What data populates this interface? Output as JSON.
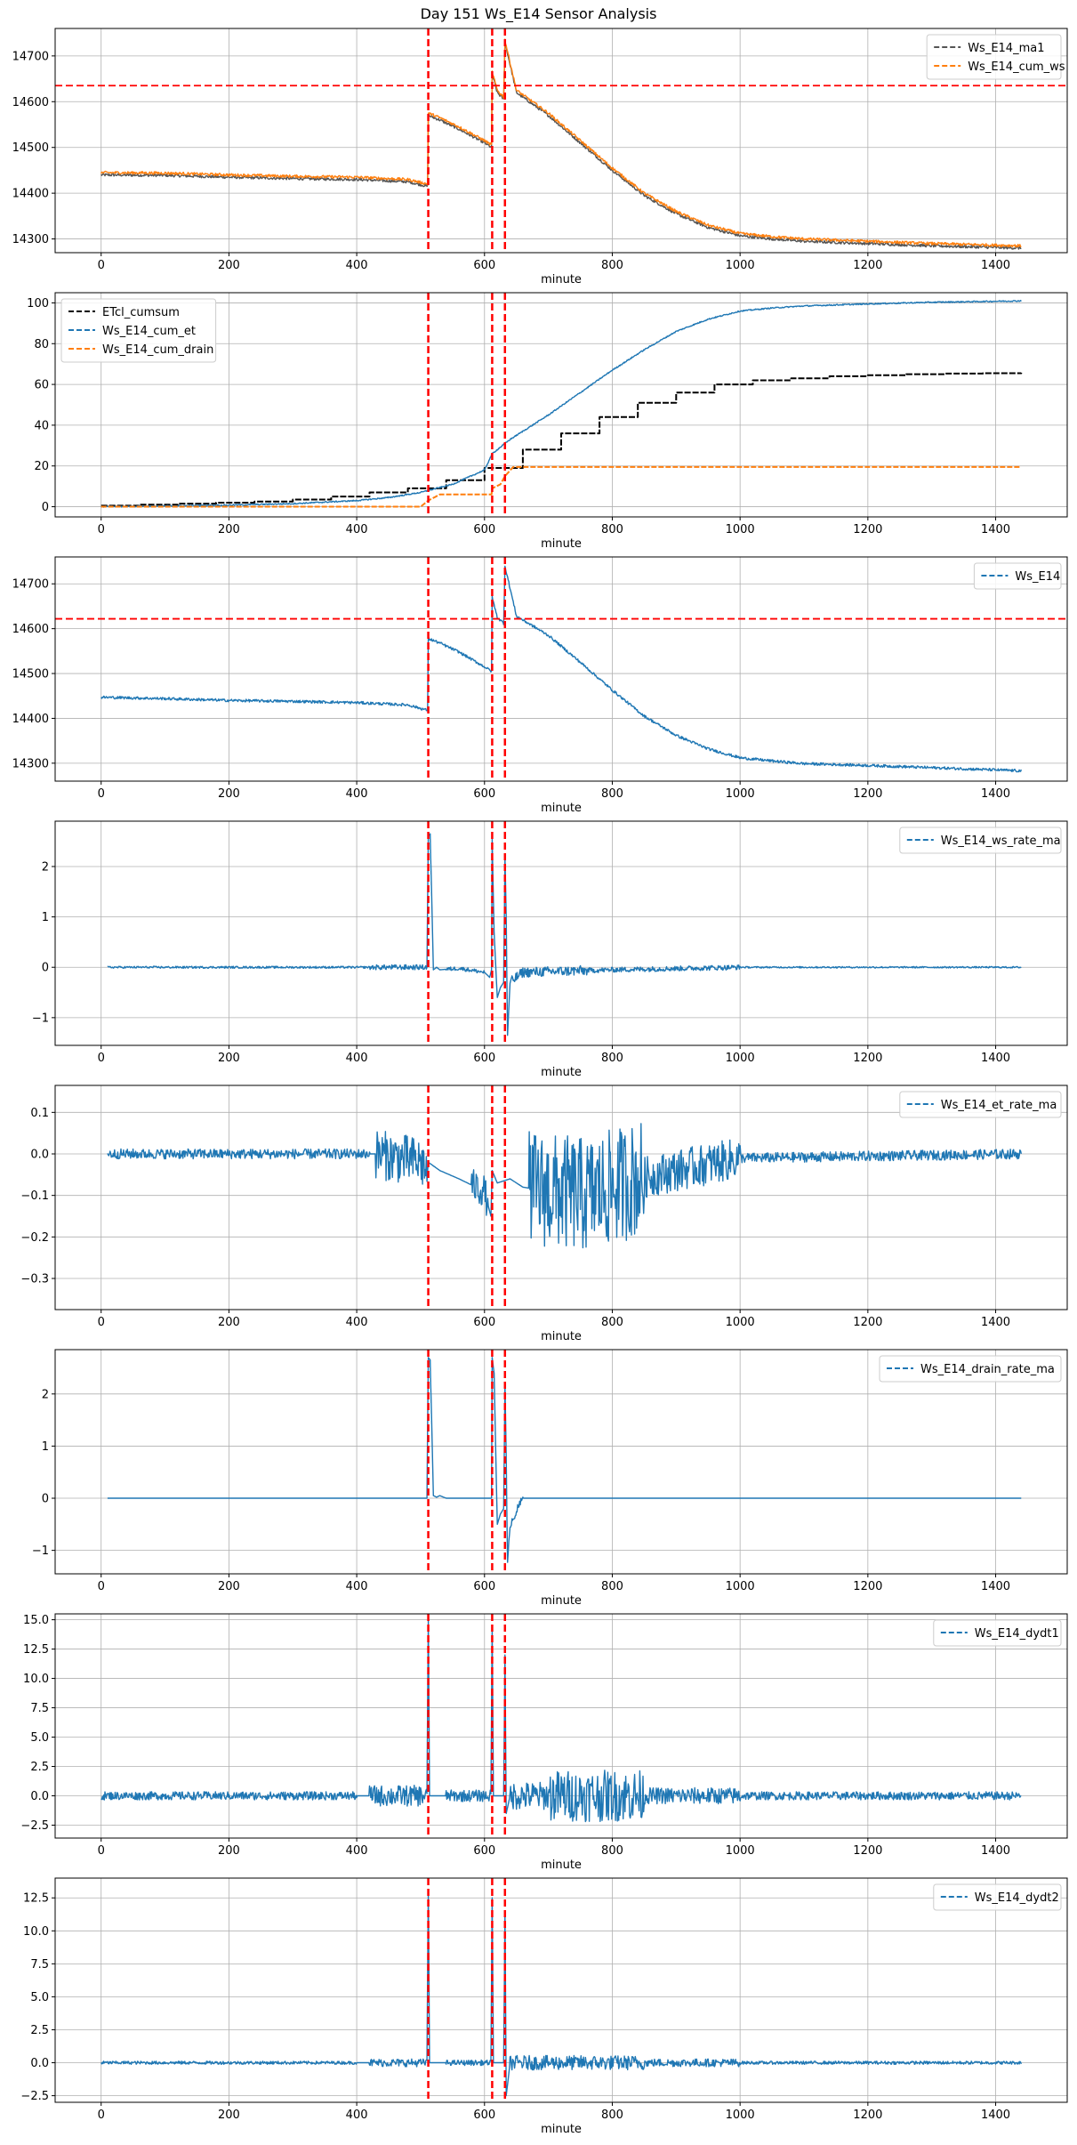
{
  "title": "Day 151 Ws_E14 Sensor Analysis",
  "colors": {
    "blue": "#1f77b4",
    "orange": "#ff7f0e",
    "black": "#000000",
    "gray": "#555555",
    "red": "#ff0000",
    "grid": "#b0b0b0"
  },
  "chart_data": [
    {
      "type": "line",
      "xlabel": "minute",
      "xlim": [
        -72,
        1512
      ],
      "ylim": [
        14270,
        14760
      ],
      "xticks": [
        0,
        200,
        400,
        600,
        800,
        1000,
        1200,
        1400
      ],
      "yticks": [
        14300,
        14400,
        14500,
        14600,
        14700
      ],
      "yticklabels": [
        "14300",
        "14400",
        "14500",
        "14600",
        "14700"
      ],
      "vlines": [
        512,
        612,
        632
      ],
      "hline": 14635,
      "legend_position": "upper right",
      "series": [
        {
          "name": "Ws_E14_ma1",
          "color": "#555555",
          "noise": 3,
          "offset": -5,
          "x": [
            0,
            100,
            200,
            300,
            400,
            480,
            511,
            512,
            530,
            560,
            600,
            611,
            612,
            620,
            630,
            632,
            650,
            700,
            750,
            800,
            850,
            900,
            950,
            1000,
            1050,
            1100,
            1200,
            1300,
            1440
          ],
          "y": [
            14445,
            14444,
            14440,
            14437,
            14435,
            14430,
            14420,
            14575,
            14565,
            14545,
            14515,
            14505,
            14665,
            14625,
            14610,
            14735,
            14625,
            14575,
            14515,
            14455,
            14400,
            14360,
            14330,
            14312,
            14305,
            14300,
            14295,
            14290,
            14285
          ]
        },
        {
          "name": "Ws_E14_cum_ws",
          "color": "#ff7f0e",
          "noise": 3,
          "offset": 0,
          "x": [
            0,
            100,
            200,
            300,
            400,
            480,
            511,
            512,
            530,
            560,
            600,
            611,
            612,
            620,
            630,
            632,
            650,
            700,
            750,
            800,
            850,
            900,
            950,
            1000,
            1050,
            1100,
            1200,
            1300,
            1440
          ],
          "y": [
            14445,
            14444,
            14440,
            14437,
            14435,
            14430,
            14420,
            14575,
            14565,
            14545,
            14515,
            14505,
            14665,
            14625,
            14610,
            14735,
            14625,
            14575,
            14515,
            14455,
            14400,
            14360,
            14330,
            14312,
            14305,
            14300,
            14295,
            14290,
            14285
          ]
        }
      ]
    },
    {
      "type": "line",
      "xlabel": "minute",
      "xlim": [
        -72,
        1512
      ],
      "ylim": [
        -5,
        105
      ],
      "xticks": [
        0,
        200,
        400,
        600,
        800,
        1000,
        1200,
        1400
      ],
      "yticks": [
        0,
        20,
        40,
        60,
        80,
        100
      ],
      "yticklabels": [
        "0",
        "20",
        "40",
        "60",
        "80",
        "100"
      ],
      "vlines": [
        512,
        612,
        632
      ],
      "legend_position": "upper left",
      "series": [
        {
          "name": "ETcl_cumsum",
          "color": "#000000",
          "step": true,
          "x": [
            0,
            60,
            120,
            180,
            240,
            300,
            360,
            420,
            480,
            540,
            600,
            660,
            720,
            780,
            840,
            900,
            960,
            1020,
            1080,
            1140,
            1200,
            1260,
            1320,
            1380,
            1440
          ],
          "y": [
            0.5,
            1,
            1.5,
            2,
            2.5,
            3.5,
            5,
            7,
            9,
            13,
            19,
            28,
            36,
            44,
            51,
            56,
            60,
            62,
            63,
            64,
            64.5,
            65,
            65.3,
            65.5,
            65.7
          ]
        },
        {
          "name": "Ws_E14_cum_et",
          "color": "#1f77b4",
          "noise": 0.3,
          "x": [
            0,
            100,
            200,
            300,
            400,
            450,
            500,
            550,
            600,
            612,
            640,
            700,
            750,
            800,
            850,
            900,
            950,
            1000,
            1050,
            1100,
            1200,
            1300,
            1440
          ],
          "y": [
            0,
            0.3,
            0.8,
            1.5,
            3,
            4.5,
            7,
            11,
            18,
            26,
            33,
            45,
            56,
            67,
            77,
            86,
            92,
            96,
            97.5,
            98.5,
            99.5,
            100.3,
            101
          ]
        },
        {
          "name": "Ws_E14_cum_drain",
          "color": "#ff7f0e",
          "x": [
            0,
            500,
            512,
            530,
            600,
            611,
            612,
            625,
            632,
            645,
            700,
            1000,
            1440
          ],
          "y": [
            0,
            0,
            3,
            6,
            6,
            6,
            9,
            11,
            15,
            19.5,
            19.5,
            19.5,
            19.5
          ]
        }
      ]
    },
    {
      "type": "line",
      "xlabel": "minute",
      "xlim": [
        -72,
        1512
      ],
      "ylim": [
        14260,
        14760
      ],
      "xticks": [
        0,
        200,
        400,
        600,
        800,
        1000,
        1200,
        1400
      ],
      "yticks": [
        14300,
        14400,
        14500,
        14600,
        14700
      ],
      "yticklabels": [
        "14300",
        "14400",
        "14500",
        "14600",
        "14700"
      ],
      "vlines": [
        512,
        612,
        632
      ],
      "hline": 14622,
      "legend_position": "upper right",
      "series": [
        {
          "name": "Ws_E14",
          "color": "#1f77b4",
          "noise": 3,
          "x": [
            0,
            100,
            200,
            300,
            400,
            480,
            511,
            512,
            530,
            560,
            600,
            611,
            612,
            620,
            630,
            632,
            650,
            700,
            750,
            800,
            850,
            900,
            950,
            1000,
            1050,
            1100,
            1200,
            1300,
            1440
          ],
          "y": [
            14447,
            14444,
            14440,
            14438,
            14435,
            14430,
            14418,
            14578,
            14568,
            14548,
            14515,
            14505,
            14670,
            14625,
            14612,
            14740,
            14628,
            14585,
            14525,
            14463,
            14405,
            14362,
            14332,
            14312,
            14305,
            14299,
            14295,
            14290,
            14283
          ]
        }
      ]
    },
    {
      "type": "line",
      "xlabel": "minute",
      "xlim": [
        -72,
        1512
      ],
      "ylim": [
        -1.55,
        2.9
      ],
      "xticks": [
        0,
        200,
        400,
        600,
        800,
        1000,
        1200,
        1400
      ],
      "yticks": [
        -1,
        0,
        1,
        2
      ],
      "yticklabels": [
        "−1",
        "0",
        "1",
        "2"
      ],
      "vlines": [
        512,
        612,
        632
      ],
      "legend_position": "upper right",
      "series": [
        {
          "name": "Ws_E14_ws_rate_ma",
          "color": "#1f77b4",
          "noiseRanges": [
            [
              0,
              420,
              0.02
            ],
            [
              420,
              510,
              0.05
            ],
            [
              540,
              600,
              0.04
            ],
            [
              640,
              760,
              0.1
            ],
            [
              760,
              1000,
              0.05
            ],
            [
              1000,
              1440,
              0.015
            ]
          ],
          "x": [
            10,
            505,
            510,
            512,
            515,
            520,
            525,
            530,
            560,
            600,
            608,
            611,
            612,
            615,
            620,
            625,
            630,
            632,
            634,
            636,
            640,
            660,
            800,
            1000,
            1440
          ],
          "y": [
            0,
            0,
            0,
            2.6,
            2.65,
            -0.05,
            0,
            -0.05,
            -0.02,
            -0.1,
            -0.2,
            -0.05,
            2.55,
            0.7,
            -0.6,
            -0.4,
            -0.3,
            2.2,
            1,
            -1.35,
            -0.3,
            -0.1,
            -0.05,
            0,
            0
          ]
        }
      ]
    },
    {
      "type": "line",
      "xlabel": "minute",
      "xlim": [
        -72,
        1512
      ],
      "ylim": [
        -0.375,
        0.165
      ],
      "xticks": [
        0,
        200,
        400,
        600,
        800,
        1000,
        1200,
        1400
      ],
      "yticks": [
        -0.3,
        -0.2,
        -0.1,
        0.0,
        0.1
      ],
      "yticklabels": [
        "−0.3",
        "−0.2",
        "−0.1",
        "0.0",
        "0.1"
      ],
      "vlines": [
        512,
        612,
        632
      ],
      "legend_position": "upper right",
      "series": [
        {
          "name": "Ws_E14_et_rate_ma",
          "color": "#1f77b4",
          "noiseRanges": [
            [
              0,
              420,
              0.012
            ],
            [
              430,
              510,
              0.06
            ],
            [
              580,
              605,
              0.04
            ],
            [
              670,
              850,
              0.14
            ],
            [
              850,
              1000,
              0.05
            ],
            [
              1000,
              1440,
              0.012
            ]
          ],
          "x": [
            10,
            430,
            500,
            511,
            512,
            530,
            560,
            600,
            610,
            612,
            620,
            640,
            660,
            700,
            760,
            840,
            900,
            1000,
            1440
          ],
          "y": [
            0,
            0,
            -0.02,
            -0.04,
            -0.02,
            -0.04,
            -0.06,
            -0.09,
            -0.15,
            -0.04,
            -0.07,
            -0.06,
            -0.08,
            -0.09,
            -0.1,
            -0.06,
            -0.04,
            -0.01,
            0
          ]
        }
      ]
    },
    {
      "type": "line",
      "xlabel": "minute",
      "xlim": [
        -72,
        1512
      ],
      "ylim": [
        -1.45,
        2.85
      ],
      "xticks": [
        0,
        200,
        400,
        600,
        800,
        1000,
        1200,
        1400
      ],
      "yticks": [
        -1,
        0,
        1,
        2
      ],
      "yticklabels": [
        "−1",
        "0",
        "1",
        "2"
      ],
      "vlines": [
        512,
        612,
        632
      ],
      "legend_position": "upper right",
      "series": [
        {
          "name": "Ws_E14_drain_rate_ma",
          "color": "#1f77b4",
          "noiseRanges": [
            [
              636,
              660,
              0.08
            ]
          ],
          "x": [
            10,
            505,
            510,
            512,
            515,
            520,
            525,
            530,
            540,
            600,
            608,
            611,
            612,
            615,
            620,
            625,
            630,
            632,
            634,
            636,
            640,
            660,
            1440
          ],
          "y": [
            0,
            0,
            0,
            2.7,
            2.65,
            0.05,
            0.02,
            0.05,
            0,
            0,
            0,
            0,
            2.7,
            2.4,
            -0.5,
            -0.3,
            -0.2,
            2.2,
            0.8,
            -1.3,
            -0.5,
            0,
            0
          ]
        }
      ]
    },
    {
      "type": "line",
      "xlabel": "minute",
      "xlim": [
        -72,
        1512
      ],
      "ylim": [
        -3.6,
        15.5
      ],
      "xticks": [
        0,
        200,
        400,
        600,
        800,
        1000,
        1200,
        1400
      ],
      "yticks": [
        -2.5,
        0.0,
        2.5,
        5.0,
        7.5,
        10.0,
        12.5,
        15.0
      ],
      "yticklabels": [
        "−2.5",
        "0.0",
        "2.5",
        "5.0",
        "7.5",
        "10.0",
        "12.5",
        "15.0"
      ],
      "vlines": [
        512,
        612,
        632
      ],
      "legend_position": "upper right",
      "series": [
        {
          "name": "Ws_E14_dydt1",
          "color": "#1f77b4",
          "noiseRanges": [
            [
              0,
              400,
              0.35
            ],
            [
              420,
              510,
              0.9
            ],
            [
              540,
              610,
              0.5
            ],
            [
              640,
              700,
              1.2
            ],
            [
              700,
              850,
              2.2
            ],
            [
              850,
              1000,
              0.7
            ],
            [
              1000,
              1440,
              0.35
            ]
          ],
          "x": [
            0,
            510,
            512,
            514,
            520,
            610,
            612,
            614,
            620,
            630,
            632,
            634,
            640,
            1440
          ],
          "y": [
            0,
            0,
            15,
            0,
            0,
            0,
            14.5,
            0,
            0,
            0,
            12,
            -1.5,
            0,
            0
          ]
        }
      ]
    },
    {
      "type": "line",
      "xlabel": "minute",
      "xlim": [
        -72,
        1512
      ],
      "ylim": [
        -3.0,
        14.0
      ],
      "xticks": [
        0,
        200,
        400,
        600,
        800,
        1000,
        1200,
        1400
      ],
      "yticks": [
        -2.5,
        0.0,
        2.5,
        5.0,
        7.5,
        10.0,
        12.5
      ],
      "yticklabels": [
        "−2.5",
        "0.0",
        "2.5",
        "5.0",
        "7.5",
        "10.0",
        "12.5"
      ],
      "vlines": [
        512,
        612,
        632
      ],
      "legend_position": "upper right",
      "series": [
        {
          "name": "Ws_E14_dydt2",
          "color": "#1f77b4",
          "noiseRanges": [
            [
              0,
              400,
              0.12
            ],
            [
              420,
              510,
              0.3
            ],
            [
              540,
              610,
              0.2
            ],
            [
              640,
              850,
              0.55
            ],
            [
              850,
              1000,
              0.3
            ],
            [
              1000,
              1440,
              0.12
            ]
          ],
          "x": [
            0,
            510,
            512,
            514,
            520,
            610,
            612,
            614,
            620,
            630,
            632,
            634,
            640,
            1440
          ],
          "y": [
            0,
            0,
            13,
            0,
            0,
            0,
            12.5,
            0,
            0,
            0,
            11.5,
            -2.5,
            0,
            0
          ]
        }
      ]
    }
  ]
}
